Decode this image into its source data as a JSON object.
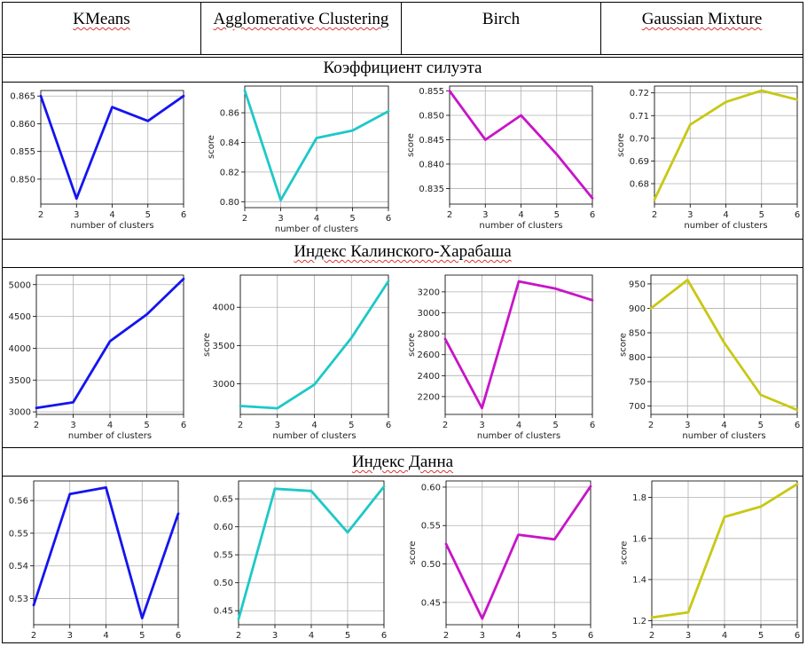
{
  "headers": [
    "KMeans",
    "Agglomerative Clustering",
    "Birch",
    "Gaussian Mixture"
  ],
  "sections": [
    {
      "title": "Коэффициент силуэта"
    },
    {
      "title": "Индекс Калинского-Харабаша"
    },
    {
      "title": "Индекс Данна"
    }
  ],
  "colors": {
    "kmeans": "#1414f0",
    "agglomerative": "#1ec8c8",
    "birch": "#c814c8",
    "gaussian": "#c8c814"
  },
  "chart_data": [
    {
      "type": "line",
      "metric": "Коэффициент силуэта",
      "algorithm": "KMeans",
      "color": "#1414f0",
      "x": [
        2,
        3,
        4,
        5,
        6
      ],
      "values": [
        0.865,
        0.8465,
        0.863,
        0.8605,
        0.865
      ],
      "ylim": [
        0.8455,
        0.866
      ],
      "yticks": [
        0.85,
        0.855,
        0.86,
        0.865
      ],
      "yticklabels": [
        "0.850",
        "0.855",
        "0.860",
        "0.865"
      ],
      "xlabel": "number of clusters",
      "ylabel": ""
    },
    {
      "type": "line",
      "metric": "Коэффициент силуэта",
      "algorithm": "Agglomerative Clustering",
      "color": "#1ec8c8",
      "x": [
        2,
        3,
        4,
        5,
        6
      ],
      "values": [
        0.875,
        0.801,
        0.843,
        0.848,
        0.861
      ],
      "ylim": [
        0.796,
        0.878
      ],
      "yticks": [
        0.8,
        0.82,
        0.84,
        0.86
      ],
      "yticklabels": [
        "0.80",
        "0.82",
        "0.84",
        "0.86"
      ],
      "xlabel": "number of clusters",
      "ylabel": "score"
    },
    {
      "type": "line",
      "metric": "Коэффициент силуэта",
      "algorithm": "Birch",
      "color": "#c814c8",
      "x": [
        2,
        3,
        4,
        5,
        6
      ],
      "values": [
        0.855,
        0.845,
        0.85,
        0.842,
        0.833
      ],
      "ylim": [
        0.8318,
        0.856
      ],
      "yticks": [
        0.835,
        0.84,
        0.845,
        0.85,
        0.855
      ],
      "yticklabels": [
        "0.835",
        "0.840",
        "0.845",
        "0.850",
        "0.855"
      ],
      "xlabel": "number of clusters",
      "ylabel": "score"
    },
    {
      "type": "line",
      "metric": "Коэффициент силуэта",
      "algorithm": "Gaussian Mixture",
      "color": "#c8c814",
      "x": [
        2,
        3,
        4,
        5,
        6
      ],
      "values": [
        0.673,
        0.706,
        0.716,
        0.721,
        0.717
      ],
      "ylim": [
        0.671,
        0.723
      ],
      "yticks": [
        0.68,
        0.69,
        0.7,
        0.71,
        0.72
      ],
      "yticklabels": [
        "0.68",
        "0.69",
        "0.70",
        "0.71",
        "0.72"
      ],
      "xlabel": "number of clusters",
      "ylabel": "score"
    },
    {
      "type": "line",
      "metric": "Индекс Калинского-Харабаша",
      "algorithm": "KMeans",
      "color": "#1414f0",
      "x": [
        2,
        3,
        4,
        5,
        6
      ],
      "values": [
        3060,
        3150,
        4110,
        4530,
        5090
      ],
      "ylim": [
        2960,
        5150
      ],
      "yticks": [
        3000,
        3500,
        4000,
        4500,
        5000
      ],
      "yticklabels": [
        "3000",
        "3500",
        "4000",
        "4500",
        "5000"
      ],
      "xlabel": "number of clusters",
      "ylabel": ""
    },
    {
      "type": "line",
      "metric": "Индекс Калинского-Харабаша",
      "algorithm": "Agglomerative Clustering",
      "color": "#1ec8c8",
      "x": [
        2,
        3,
        4,
        5,
        6
      ],
      "values": [
        2710,
        2680,
        2990,
        3600,
        4340
      ],
      "ylim": [
        2600,
        4420
      ],
      "yticks": [
        3000,
        3500,
        4000
      ],
      "yticklabels": [
        "3000",
        "3500",
        "4000"
      ],
      "xlabel": "number of clusters",
      "ylabel": "score"
    },
    {
      "type": "line",
      "metric": "Индекс Калинского-Харабаша",
      "algorithm": "Birch",
      "color": "#c814c8",
      "x": [
        2,
        3,
        4,
        5,
        6
      ],
      "values": [
        2750,
        2090,
        3300,
        3230,
        3120
      ],
      "ylim": [
        2030,
        3360
      ],
      "yticks": [
        2200,
        2400,
        2600,
        2800,
        3000,
        3200
      ],
      "yticklabels": [
        "2200",
        "2400",
        "2600",
        "2800",
        "3000",
        "3200"
      ],
      "xlabel": "number of clusters",
      "ylabel": "score"
    },
    {
      "type": "line",
      "metric": "Индекс Калинского-Харабаша",
      "algorithm": "Gaussian Mixture",
      "color": "#c8c814",
      "x": [
        2,
        3,
        4,
        5,
        6
      ],
      "values": [
        900,
        958,
        830,
        723,
        692
      ],
      "ylim": [
        683,
        968
      ],
      "yticks": [
        700,
        750,
        800,
        850,
        900,
        950
      ],
      "yticklabels": [
        "700",
        "750",
        "800",
        "850",
        "900",
        "950"
      ],
      "xlabel": "number of clusters",
      "ylabel": "score"
    },
    {
      "type": "line",
      "metric": "Индекс Данна",
      "algorithm": "KMeans",
      "color": "#1414f0",
      "x": [
        2,
        3,
        4,
        5,
        6
      ],
      "values": [
        0.528,
        0.562,
        0.564,
        0.524,
        0.556
      ],
      "ylim": [
        0.522,
        0.566
      ],
      "yticks": [
        0.53,
        0.54,
        0.55,
        0.56
      ],
      "yticklabels": [
        "0.53",
        "0.54",
        "0.55",
        "0.56"
      ],
      "xlabel": "",
      "ylabel": ""
    },
    {
      "type": "line",
      "metric": "Индекс Данна",
      "algorithm": "Agglomerative Clustering",
      "color": "#1ec8c8",
      "x": [
        2,
        3,
        4,
        5,
        6
      ],
      "values": [
        0.435,
        0.668,
        0.664,
        0.59,
        0.672
      ],
      "ylim": [
        0.425,
        0.682
      ],
      "yticks": [
        0.45,
        0.5,
        0.55,
        0.6,
        0.65
      ],
      "yticklabels": [
        "0.45",
        "0.50",
        "0.55",
        "0.60",
        "0.65"
      ],
      "xlabel": "",
      "ylabel": ""
    },
    {
      "type": "line",
      "metric": "Индекс Данна",
      "algorithm": "Birch",
      "color": "#c814c8",
      "x": [
        2,
        3,
        4,
        5,
        6
      ],
      "values": [
        0.526,
        0.429,
        0.538,
        0.532,
        0.601
      ],
      "ylim": [
        0.421,
        0.608
      ],
      "yticks": [
        0.45,
        0.5,
        0.55,
        0.6
      ],
      "yticklabels": [
        "0.45",
        "0.50",
        "0.55",
        "0.60"
      ],
      "xlabel": "",
      "ylabel": "score"
    },
    {
      "type": "line",
      "metric": "Индекс Данна",
      "algorithm": "Gaussian Mixture",
      "color": "#c8c814",
      "x": [
        2,
        3,
        4,
        5,
        6
      ],
      "values": [
        1.215,
        1.24,
        1.705,
        1.755,
        1.865
      ],
      "ylim": [
        1.18,
        1.88
      ],
      "yticks": [
        1.2,
        1.4,
        1.6,
        1.8
      ],
      "yticklabels": [
        "1.2",
        "1.4",
        "1.6",
        "1.8"
      ],
      "xlabel": "",
      "ylabel": "score"
    }
  ]
}
